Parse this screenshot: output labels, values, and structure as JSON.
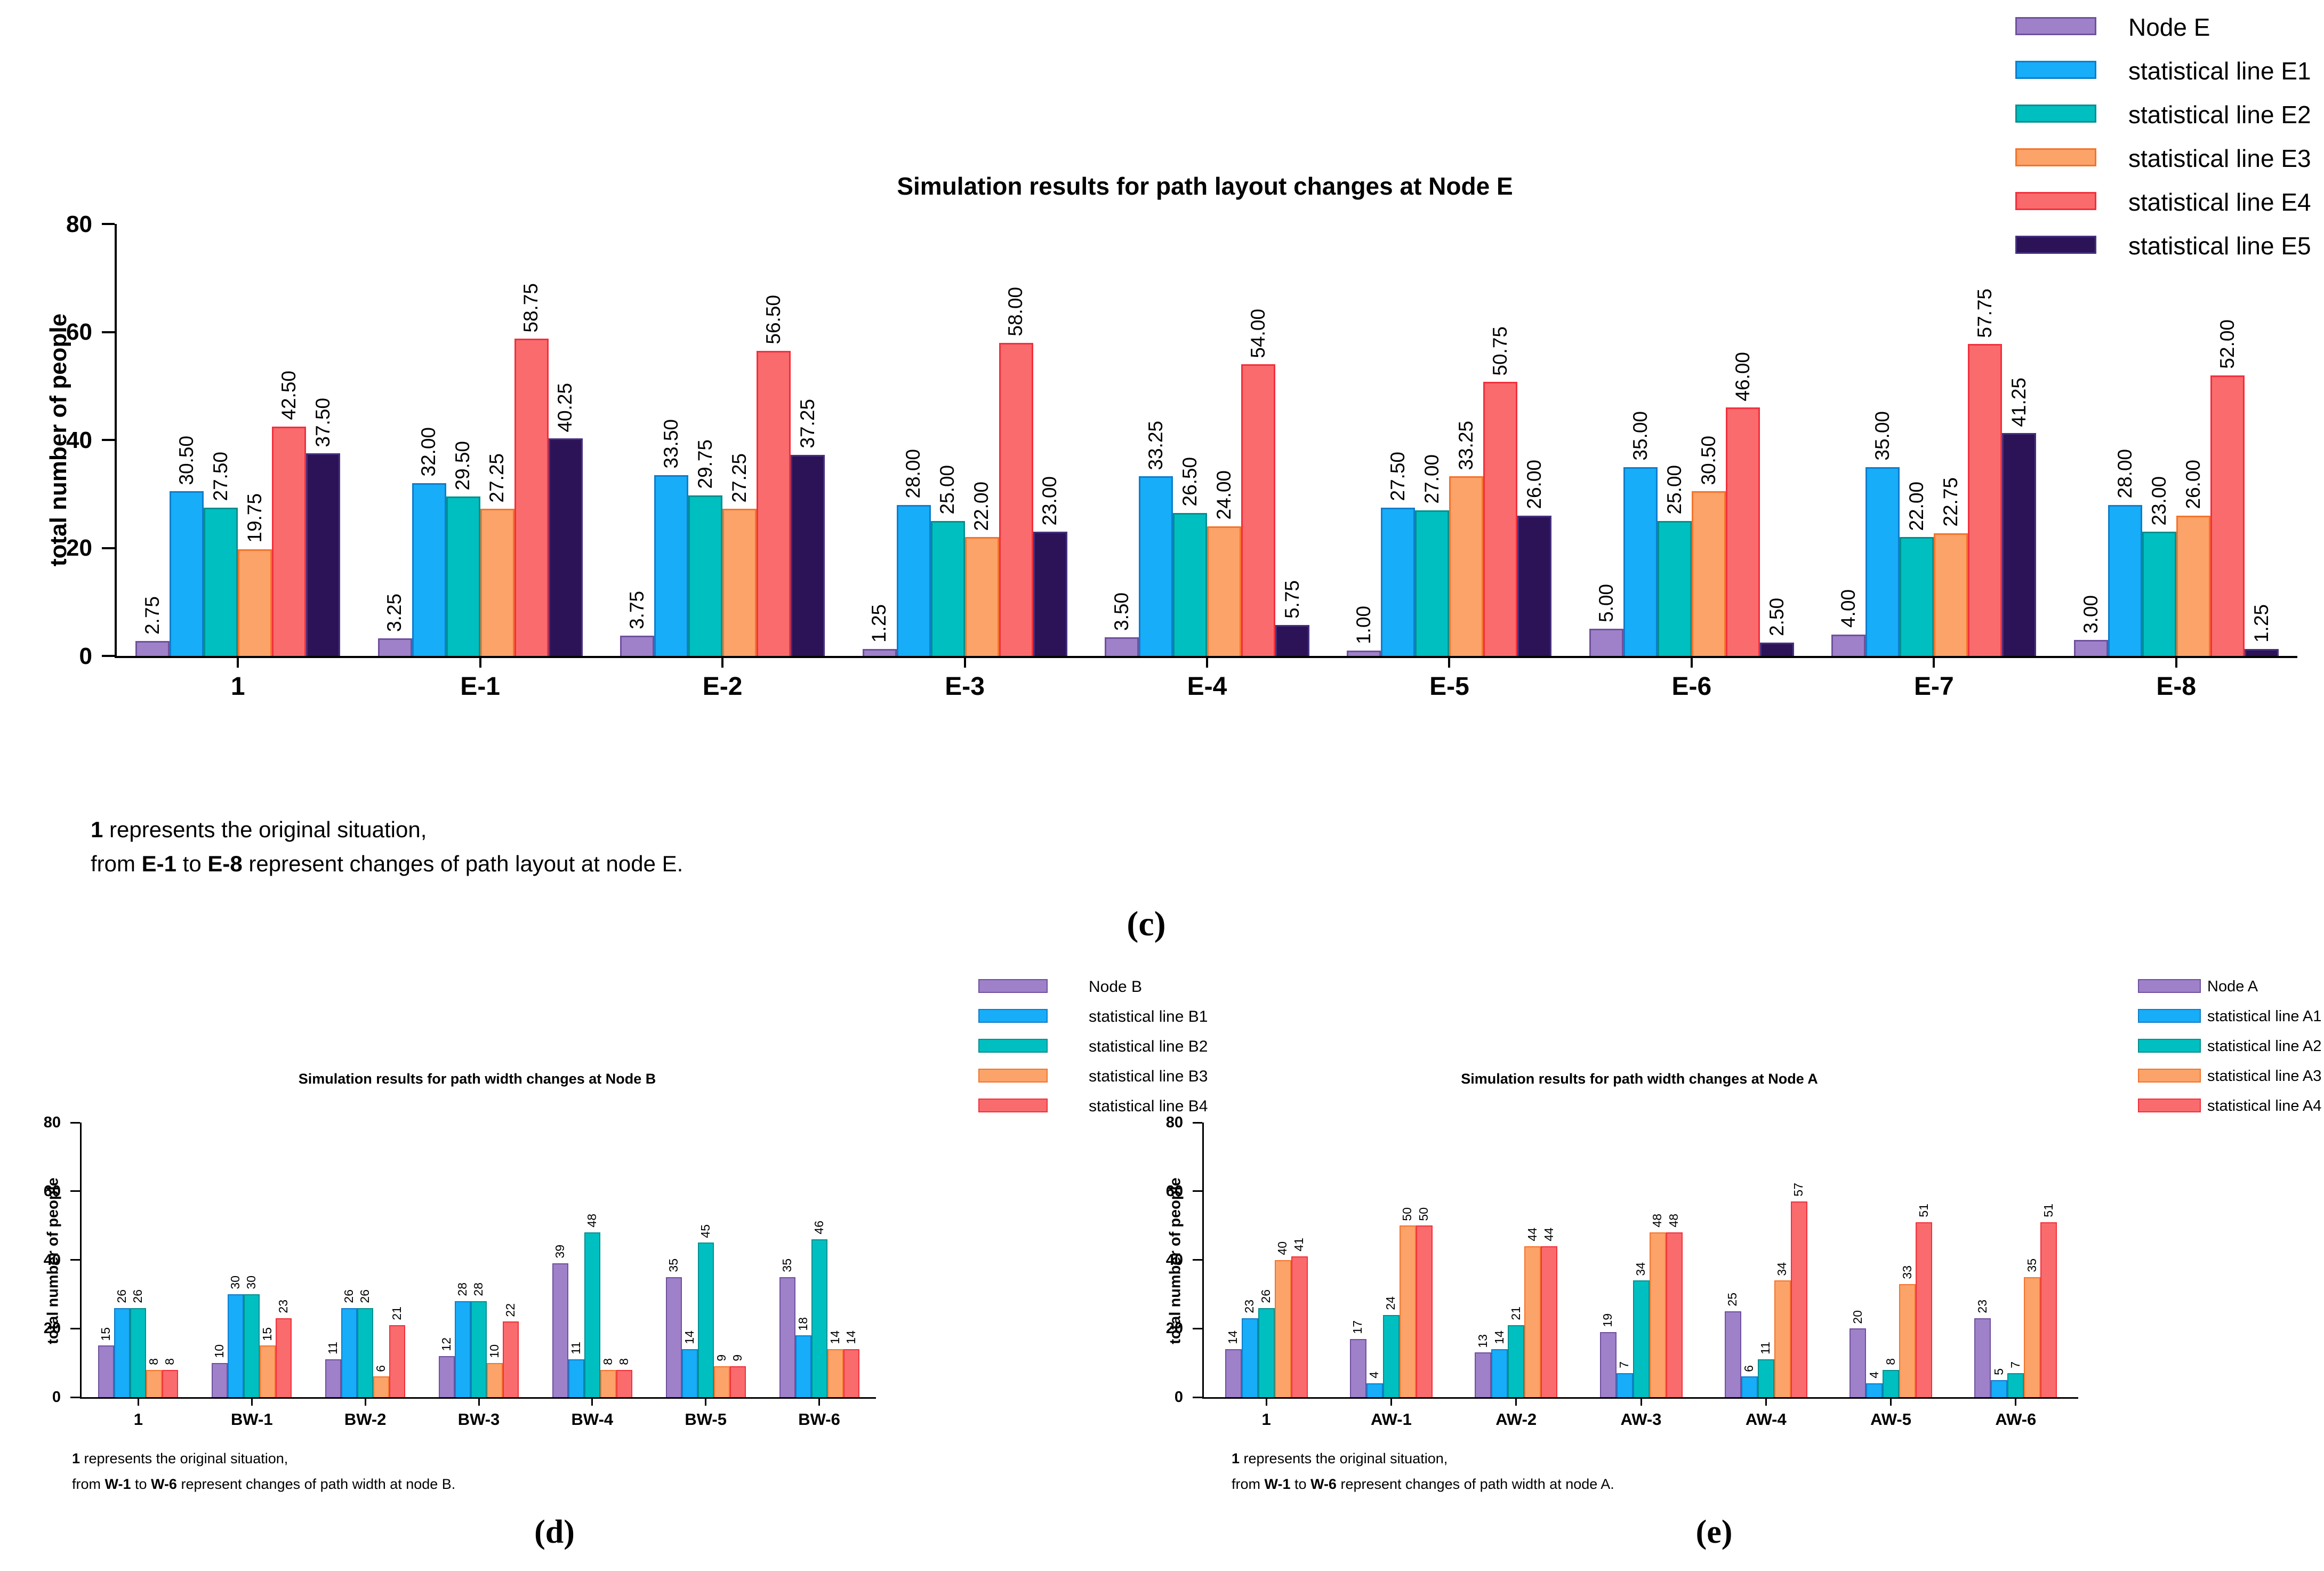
{
  "figure_labels": {
    "c": "(c)",
    "d": "(d)",
    "e": "(e)"
  },
  "palette": {
    "node_fill": "#9E81C9",
    "node_border": "#70509E",
    "line1_fill": "#17ADF8",
    "line1_border": "#0E7ECC",
    "line2_fill": "#00BFC1",
    "line2_border": "#00908F",
    "line3_fill": "#FCA369",
    "line3_border": "#F4742C",
    "line4_fill": "#FA6B6E",
    "line4_border": "#F2303B",
    "line5_fill": "#2C1256",
    "line5_border": "#45307E"
  },
  "chart_data": [
    {
      "id": "c",
      "type": "bar",
      "title": "Simulation results for path layout changes at Node E",
      "ylabel": "total number of people",
      "ylim": [
        0,
        80
      ],
      "yticks": [
        0,
        20,
        40,
        60,
        80
      ],
      "grid": false,
      "legend_position": "top-right",
      "value_label_decimals": 2,
      "categories": [
        "1",
        "E-1",
        "E-2",
        "E-3",
        "E-4",
        "E-5",
        "E-6",
        "E-7",
        "E-8"
      ],
      "series": [
        {
          "name": "Node E",
          "fill": "#9E81C9",
          "border": "#70509E",
          "values": [
            2.75,
            3.25,
            3.75,
            1.25,
            3.5,
            1.0,
            5.0,
            4.0,
            3.0
          ]
        },
        {
          "name": "statistical line E1",
          "fill": "#17ADF8",
          "border": "#0E7ECC",
          "values": [
            30.5,
            32.0,
            33.5,
            28.0,
            33.25,
            27.5,
            35.0,
            35.0,
            28.0
          ]
        },
        {
          "name": "statistical line E2",
          "fill": "#00BFC1",
          "border": "#00908F",
          "values": [
            27.5,
            29.5,
            29.75,
            25.0,
            26.5,
            27.0,
            25.0,
            22.0,
            23.0
          ]
        },
        {
          "name": "statistical line E3",
          "fill": "#FCA369",
          "border": "#F4742C",
          "values": [
            19.75,
            27.25,
            27.25,
            22.0,
            24.0,
            33.25,
            30.5,
            22.75,
            26.0
          ]
        },
        {
          "name": "statistical line E4",
          "fill": "#FA6B6E",
          "border": "#F2303B",
          "values": [
            42.5,
            58.75,
            56.5,
            58.0,
            54.0,
            50.75,
            46.0,
            57.75,
            52.0
          ]
        },
        {
          "name": "statistical line E5",
          "fill": "#2C1256",
          "border": "#45307E",
          "values": [
            37.5,
            40.25,
            37.25,
            23.0,
            5.75,
            26.0,
            2.5,
            41.25,
            1.25
          ]
        }
      ],
      "footnote_lines": [
        [
          {
            "text": "1",
            "bold": true
          },
          {
            "text": " represents the original situation,",
            "bold": false
          }
        ],
        [
          {
            "text": "from ",
            "bold": false
          },
          {
            "text": "E-1",
            "bold": true
          },
          {
            "text": " to ",
            "bold": false
          },
          {
            "text": "E-8",
            "bold": true
          },
          {
            "text": " represent changes of path layout at node E.",
            "bold": false
          }
        ]
      ]
    },
    {
      "id": "d",
      "type": "bar",
      "title": "Simulation results for path width changes at Node B",
      "ylabel": "total number of people",
      "ylim": [
        0,
        80
      ],
      "yticks": [
        0,
        20,
        40,
        60,
        80
      ],
      "grid": false,
      "legend_position": "top-right",
      "value_label_decimals": 0,
      "categories": [
        "1",
        "BW-1",
        "BW-2",
        "BW-3",
        "BW-4",
        "BW-5",
        "BW-6"
      ],
      "series": [
        {
          "name": "Node B",
          "fill": "#9E81C9",
          "border": "#70509E",
          "values": [
            15,
            10,
            11,
            12,
            39,
            35,
            35
          ]
        },
        {
          "name": "statistical line B1",
          "fill": "#17ADF8",
          "border": "#0E7ECC",
          "values": [
            26,
            30,
            26,
            28,
            11,
            14,
            18
          ]
        },
        {
          "name": "statistical line B2",
          "fill": "#00BFC1",
          "border": "#00908F",
          "values": [
            26,
            30,
            26,
            28,
            48,
            45,
            46
          ]
        },
        {
          "name": "statistical line B3",
          "fill": "#FCA369",
          "border": "#F4742C",
          "values": [
            8,
            15,
            6,
            10,
            8,
            9,
            14
          ]
        },
        {
          "name": "statistical line B4",
          "fill": "#FA6B6E",
          "border": "#F2303B",
          "values": [
            8,
            23,
            21,
            22,
            8,
            9,
            14
          ]
        }
      ],
      "footnote_lines": [
        [
          {
            "text": "1",
            "bold": true
          },
          {
            "text": " represents the original situation,",
            "bold": false
          }
        ],
        [
          {
            "text": "from ",
            "bold": false
          },
          {
            "text": "W-1",
            "bold": true
          },
          {
            "text": " to ",
            "bold": false
          },
          {
            "text": "W-6",
            "bold": true
          },
          {
            "text": " represent changes of path width at node B.",
            "bold": false
          }
        ]
      ]
    },
    {
      "id": "e",
      "type": "bar",
      "title": "Simulation results for path width changes at Node A",
      "ylabel": "total number of people",
      "ylim": [
        0,
        80
      ],
      "yticks": [
        0,
        20,
        40,
        60,
        80
      ],
      "grid": false,
      "legend_position": "top-right",
      "value_label_decimals": 0,
      "categories": [
        "1",
        "AW-1",
        "AW-2",
        "AW-3",
        "AW-4",
        "AW-5",
        "AW-6"
      ],
      "series": [
        {
          "name": "Node A",
          "fill": "#9E81C9",
          "border": "#70509E",
          "values": [
            14,
            17,
            13,
            19,
            25,
            20,
            23
          ]
        },
        {
          "name": "statistical line A1",
          "fill": "#17ADF8",
          "border": "#0E7ECC",
          "values": [
            23,
            4,
            14,
            7,
            6,
            4,
            5
          ]
        },
        {
          "name": "statistical line A2",
          "fill": "#00BFC1",
          "border": "#00908F",
          "values": [
            26,
            24,
            21,
            34,
            11,
            8,
            7
          ]
        },
        {
          "name": "statistical line A3",
          "fill": "#FCA369",
          "border": "#F4742C",
          "values": [
            40,
            50,
            44,
            48,
            34,
            33,
            35
          ]
        },
        {
          "name": "statistical line A4",
          "fill": "#FA6B6E",
          "border": "#F2303B",
          "values": [
            41,
            50,
            44,
            48,
            57,
            51,
            51
          ]
        }
      ],
      "footnote_lines": [
        [
          {
            "text": "1",
            "bold": true
          },
          {
            "text": " represents the original situation,",
            "bold": false
          }
        ],
        [
          {
            "text": "from ",
            "bold": false
          },
          {
            "text": "W-1",
            "bold": true
          },
          {
            "text": " to ",
            "bold": false
          },
          {
            "text": "W-6",
            "bold": true
          },
          {
            "text": " represent changes of path width at node A.",
            "bold": false
          }
        ]
      ]
    }
  ]
}
